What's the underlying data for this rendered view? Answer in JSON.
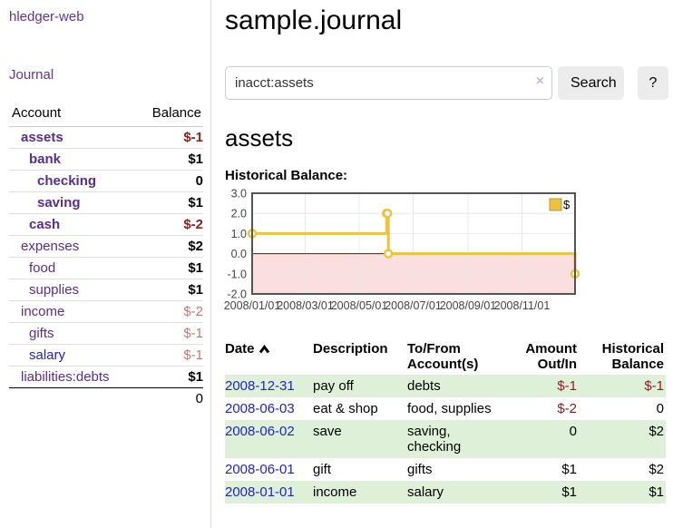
{
  "sidebar": {
    "brand": "hledger-web",
    "nav_journal": "Journal",
    "table": {
      "account_header": "Account",
      "balance_header": "Balance"
    },
    "accounts": [
      {
        "name": "assets",
        "depth": 1,
        "bold": true,
        "balance": "$-1",
        "balance_class": "neg"
      },
      {
        "name": "bank",
        "depth": 2,
        "bold": true,
        "balance": "$1",
        "balance_class": ""
      },
      {
        "name": "checking",
        "depth": 3,
        "bold": true,
        "balance": "0",
        "balance_class": ""
      },
      {
        "name": "saving",
        "depth": 3,
        "bold": true,
        "balance": "$1",
        "balance_class": ""
      },
      {
        "name": "cash",
        "depth": 2,
        "bold": true,
        "balance": "$-2",
        "balance_class": "neg"
      },
      {
        "name": "expenses",
        "depth": 1,
        "bold": false,
        "balance": "$2",
        "balance_class": ""
      },
      {
        "name": "food",
        "depth": 2,
        "bold": false,
        "balance": "$1",
        "balance_class": ""
      },
      {
        "name": "supplies",
        "depth": 2,
        "bold": false,
        "balance": "$1",
        "balance_class": ""
      },
      {
        "name": "income",
        "depth": 1,
        "bold": false,
        "balance": "$-2",
        "balance_class": "negsoft"
      },
      {
        "name": "gifts",
        "depth": 2,
        "bold": false,
        "balance": "$-1",
        "balance_class": "negsoft"
      },
      {
        "name": "salary",
        "depth": 2,
        "bold": false,
        "link_color": "blue",
        "balance": "$-1",
        "balance_class": "negsoft"
      },
      {
        "name": "liabilities:debts",
        "depth": 1,
        "bold": false,
        "balance": "$1",
        "balance_class": ""
      }
    ],
    "total": "0"
  },
  "header": {
    "title": "sample.journal"
  },
  "search": {
    "value": "inacct:assets",
    "clear_icon": "×",
    "button": "Search",
    "help_button": "?"
  },
  "account_page": {
    "heading": "assets",
    "chart_title": "Historical Balance:"
  },
  "chart_data": {
    "type": "line",
    "title": "Historical Balance of assets",
    "steps": true,
    "series": [
      {
        "name": "$",
        "color": "#edc240",
        "points": [
          [
            "2008-01-01",
            1
          ],
          [
            "2008-06-01",
            2
          ],
          [
            "2008-06-02",
            2
          ],
          [
            "2008-06-03",
            0
          ],
          [
            "2008-12-31",
            -1
          ]
        ]
      }
    ],
    "x_range": [
      "2008-01-01",
      "2008-12-31"
    ],
    "x_ticks": [
      {
        "date": "2008-01-01",
        "label": "2008/01/01"
      },
      {
        "date": "2008-03-01",
        "label": "2008/03/01"
      },
      {
        "date": "2008-05-01",
        "label": "2008/05/01"
      },
      {
        "date": "2008-07-01",
        "label": "2008/07/01"
      },
      {
        "date": "2008-09-01",
        "label": "2008/09/01"
      },
      {
        "date": "2008-11-01",
        "label": "2008/11/01"
      }
    ],
    "ylim": [
      -2,
      3
    ],
    "y_ticks": [
      {
        "v": 3,
        "label": "3.0"
      },
      {
        "v": 2,
        "label": "2.0"
      },
      {
        "v": 1,
        "label": "1.0"
      },
      {
        "v": 0,
        "label": "0.0"
      },
      {
        "v": -1,
        "label": "-1.0"
      },
      {
        "v": -2,
        "label": "-2.0"
      }
    ],
    "legend": "$",
    "legend_position": "top-right",
    "grid": true,
    "colors": {
      "line": "#edc240",
      "marker_fill": "#ffffff",
      "border": "#545454",
      "gridline": "#e8e8e8",
      "negative_region": "#fbdfdf",
      "zero_line": "#8b0000",
      "tick_text": "#444444"
    }
  },
  "register": {
    "headers": {
      "date": "Date",
      "sort_icon": "chevron-up",
      "description": "Description",
      "accounts": "To/From Account(s)",
      "amount": "Amount Out/In",
      "balance": "Historical Balance"
    },
    "rows": [
      {
        "date": "2008-12-31",
        "description": "pay off",
        "accounts": "debts",
        "amount": "$-1",
        "amount_class": "neg",
        "balance": "$-1",
        "balance_class": "neg"
      },
      {
        "date": "2008-06-03",
        "description": "eat & shop",
        "accounts": "food, supplies",
        "amount": "$-2",
        "amount_class": "neg",
        "balance": "0",
        "balance_class": ""
      },
      {
        "date": "2008-06-02",
        "description": "save",
        "accounts": "saving, checking",
        "amount": "0",
        "amount_class": "",
        "balance": "$2",
        "balance_class": ""
      },
      {
        "date": "2008-06-01",
        "description": "gift",
        "accounts": "gifts",
        "amount": "$1",
        "amount_class": "",
        "balance": "$2",
        "balance_class": ""
      },
      {
        "date": "2008-01-01",
        "description": "income",
        "accounts": "salary",
        "amount": "$1",
        "amount_class": "",
        "balance": "$1",
        "balance_class": ""
      }
    ]
  }
}
